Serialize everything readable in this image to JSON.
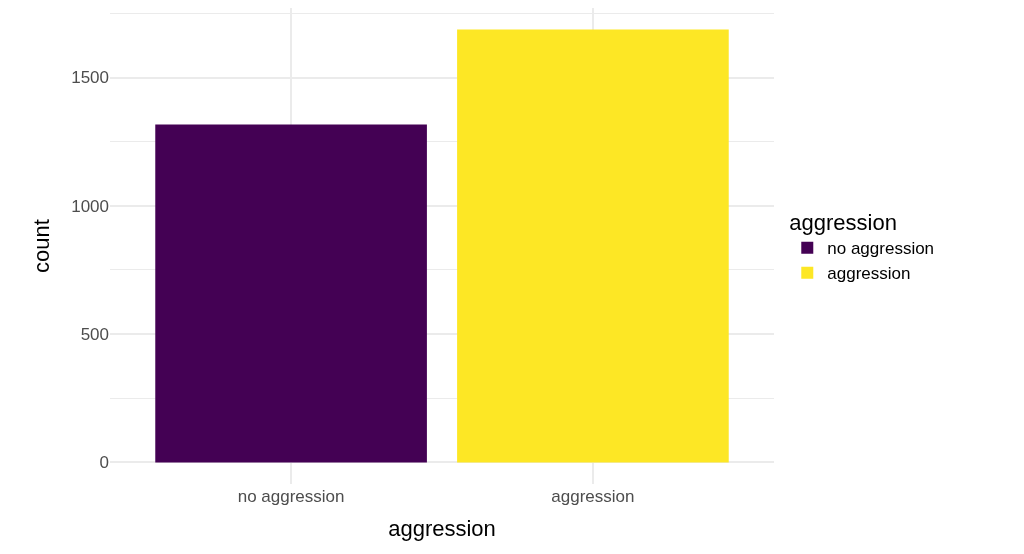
{
  "chart_data": {
    "type": "bar",
    "xlabel": "aggression",
    "ylabel": "count",
    "legend_title": "aggression",
    "categories": [
      "no aggression",
      "aggression"
    ],
    "series": [
      {
        "name": "no aggression",
        "color": "#440154",
        "values": [
          1317,
          null
        ]
      },
      {
        "name": "aggression",
        "color": "#fde725",
        "values": [
          null,
          1687
        ]
      }
    ],
    "ylim": [
      -84,
      1771
    ],
    "yticks": [
      0,
      500,
      1000,
      1500
    ],
    "grid": true,
    "legend": "right"
  }
}
